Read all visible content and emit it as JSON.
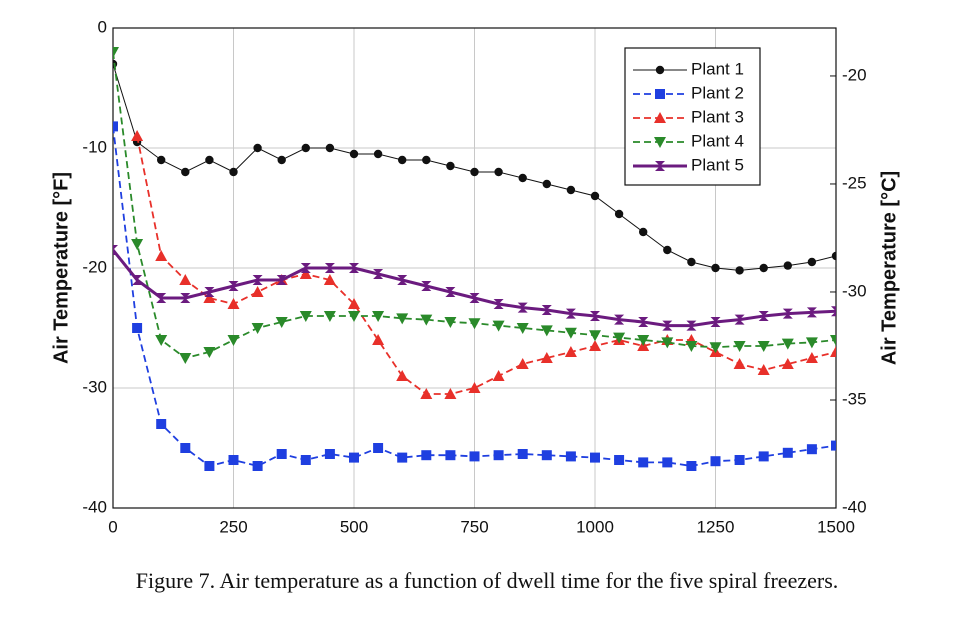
{
  "chart_data": {
    "type": "line",
    "caption": "Figure 7. Air temperature as a function of dwell time for the five spiral freezers.",
    "y_label": "Air Temperature [°F]",
    "y2_label": "Air Temperature [°C]",
    "x": [
      0,
      50,
      100,
      150,
      200,
      250,
      300,
      350,
      400,
      450,
      500,
      550,
      600,
      650,
      700,
      750,
      800,
      850,
      900,
      950,
      1000,
      1050,
      1100,
      1150,
      1200,
      1250,
      1300,
      1350,
      1400,
      1450,
      1500
    ],
    "xlim": [
      0,
      1500
    ],
    "xticks": [
      0,
      250,
      500,
      750,
      1000,
      1250,
      1500
    ],
    "ylim": [
      -40,
      0
    ],
    "yticks": [
      -40,
      -30,
      -20,
      -10,
      0
    ],
    "y2lim": [
      -40,
      -17.78
    ],
    "y2ticks": [
      -40,
      -35,
      -30,
      -25,
      -20
    ],
    "grid": true,
    "legend": "upper right",
    "series": [
      {
        "name": "Plant 1",
        "color": "#111111",
        "dash": "solid",
        "marker": "circle",
        "width": 1,
        "values": [
          -3,
          -9.5,
          -11,
          -12,
          -11,
          -12,
          -10,
          -11,
          -10,
          -10,
          -10.5,
          -10.5,
          -11,
          -11,
          -11.5,
          -12,
          -12,
          -12.5,
          -13,
          -13.5,
          -14,
          -15.5,
          -17,
          -18.5,
          -19.5,
          -20,
          -20.2,
          -20,
          -19.8,
          -19.5,
          -19
        ]
      },
      {
        "name": "Plant 2",
        "color": "#1f3fe0",
        "dash": "dashed",
        "marker": "square",
        "width": 1.8,
        "values": [
          -8.2,
          -25,
          -33,
          -35,
          -36.5,
          -36,
          -36.5,
          -35.5,
          -36,
          -35.5,
          -35.8,
          -35,
          -35.8,
          -35.6,
          -35.6,
          -35.7,
          -35.6,
          -35.5,
          -35.6,
          -35.7,
          -35.8,
          -36,
          -36.2,
          -36.2,
          -36.5,
          -36.1,
          -36,
          -35.7,
          -35.4,
          -35.1,
          -34.8
        ]
      },
      {
        "name": "Plant 3",
        "color": "#e8302a",
        "dash": "dashed",
        "marker": "triangle-up",
        "width": 1.8,
        "values": [
          null,
          -9,
          -19,
          -21,
          -22.5,
          -23,
          -22,
          -21,
          -20.5,
          -21,
          -23,
          -26,
          -29,
          -30.5,
          -30.5,
          -30,
          -29,
          -28,
          -27.5,
          -27,
          -26.5,
          -26,
          -26.5,
          -26,
          -26,
          -27,
          -28,
          -28.5,
          -28,
          -27.5,
          -27
        ]
      },
      {
        "name": "Plant 4",
        "color": "#2a8a2a",
        "dash": "dashed",
        "marker": "triangle-down",
        "width": 1.8,
        "values": [
          -2,
          -18,
          -26,
          -27.5,
          -27,
          -26,
          -25,
          -24.5,
          -24,
          -24,
          -24,
          -24,
          -24.2,
          -24.3,
          -24.5,
          -24.6,
          -24.8,
          -25,
          -25.2,
          -25.4,
          -25.6,
          -25.8,
          -26,
          -26.2,
          -26.5,
          -26.6,
          -26.5,
          -26.5,
          -26.3,
          -26.2,
          -26
        ]
      },
      {
        "name": "Plant 5",
        "color": "#6b1b7f",
        "dash": "solid",
        "marker": "hourglass",
        "width": 3,
        "values": [
          -18.5,
          -21,
          -22.5,
          -22.5,
          -22,
          -21.5,
          -21,
          -21,
          -20,
          -20,
          -20,
          -20.5,
          -21,
          -21.5,
          -22,
          -22.5,
          -23,
          -23.3,
          -23.5,
          -23.8,
          -24,
          -24.3,
          -24.5,
          -24.8,
          -24.8,
          -24.5,
          -24.3,
          -24,
          -23.8,
          -23.7,
          -23.6
        ]
      }
    ]
  }
}
